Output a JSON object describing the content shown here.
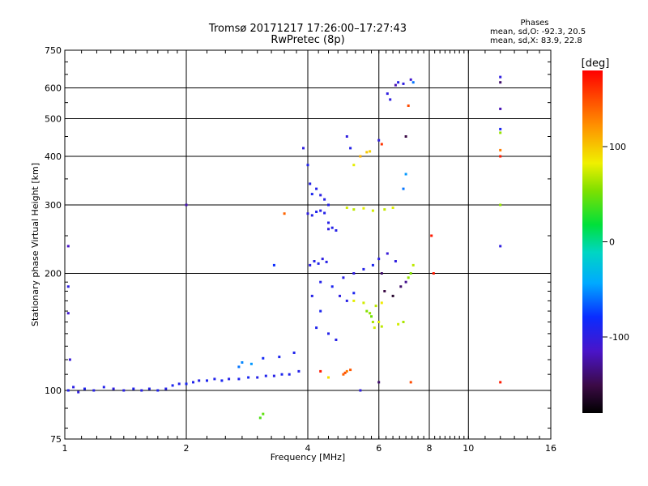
{
  "chart_data": {
    "type": "scatter",
    "title": "Tromsø 20171217 17:26:00–17:27:43",
    "subtitle": "RwPretec (8p)",
    "xlabel": "Frequency [MHz]",
    "ylabel": "Stationary phase Virtual Height [km]",
    "x_scale": "log",
    "y_scale": "log",
    "xlim": [
      1,
      16
    ],
    "ylim": [
      75,
      750
    ],
    "x_ticks": [
      1,
      2,
      4,
      6,
      8,
      10,
      16
    ],
    "y_ticks": [
      75,
      100,
      200,
      300,
      400,
      500,
      600,
      750
    ],
    "grid": true,
    "phases": {
      "title": "Phases",
      "o_line": "mean, sd,O: -92.3, 20.5",
      "x_line": "mean, sd,X: 83.9, 22.8"
    },
    "colorbar": {
      "label": "[deg]",
      "range": [
        -180,
        180
      ],
      "ticks": [
        100,
        0,
        -100
      ]
    },
    "series": [
      {
        "points": [
          [
            1.02,
            100,
            -95
          ],
          [
            1.05,
            102,
            -98
          ],
          [
            1.08,
            99,
            -100
          ],
          [
            1.12,
            101,
            -92
          ],
          [
            1.18,
            100,
            -96
          ],
          [
            1.25,
            102,
            -94
          ],
          [
            1.32,
            101,
            -100
          ],
          [
            1.4,
            100,
            -97
          ],
          [
            1.48,
            101,
            -93
          ],
          [
            1.55,
            100,
            -98
          ],
          [
            1.62,
            101,
            -95
          ],
          [
            1.7,
            100,
            -92
          ],
          [
            1.78,
            101,
            -96
          ],
          [
            1.85,
            103,
            -90
          ],
          [
            1.92,
            104,
            -94
          ],
          [
            2.0,
            104,
            -88
          ],
          [
            2.08,
            105,
            -92
          ],
          [
            2.15,
            106,
            -95
          ],
          [
            2.25,
            106,
            -90
          ],
          [
            2.35,
            107,
            -93
          ],
          [
            2.45,
            106,
            -89
          ],
          [
            2.55,
            107,
            -94
          ],
          [
            2.7,
            107,
            -91
          ],
          [
            2.85,
            108,
            -88
          ],
          [
            3.0,
            108,
            -95
          ],
          [
            3.15,
            109,
            -92
          ],
          [
            3.3,
            109,
            -96
          ],
          [
            3.45,
            110,
            -90
          ],
          [
            3.6,
            110,
            -93
          ],
          [
            3.8,
            112,
            -95
          ],
          [
            2.7,
            115,
            -60
          ],
          [
            2.75,
            118,
            -55
          ],
          [
            2.9,
            117,
            -50
          ],
          [
            3.1,
            121,
            -85
          ],
          [
            3.4,
            122,
            -90
          ],
          [
            3.7,
            125,
            -92
          ],
          [
            1.02,
            185,
            -100
          ],
          [
            1.02,
            158,
            -110
          ],
          [
            1.03,
            120,
            -105
          ],
          [
            1.02,
            235,
            -115
          ],
          [
            3.05,
            85,
            40
          ],
          [
            3.1,
            87,
            45
          ],
          [
            3.9,
            420,
            -100
          ],
          [
            4.0,
            380,
            -92
          ],
          [
            4.05,
            340,
            -95
          ],
          [
            4.1,
            320,
            -90
          ],
          [
            4.2,
            330,
            -94
          ],
          [
            4.3,
            318,
            -98
          ],
          [
            4.4,
            310,
            -96
          ],
          [
            4.5,
            300,
            -95
          ],
          [
            4.0,
            285,
            -100
          ],
          [
            4.1,
            282,
            -95
          ],
          [
            4.2,
            288,
            -92
          ],
          [
            4.3,
            290,
            -98
          ],
          [
            4.4,
            286,
            -94
          ],
          [
            4.5,
            270,
            -96
          ],
          [
            4.5,
            260,
            -100
          ],
          [
            4.6,
            262,
            -94
          ],
          [
            4.7,
            258,
            -96
          ],
          [
            4.05,
            210,
            -98
          ],
          [
            4.15,
            215,
            -95
          ],
          [
            4.25,
            212,
            -92
          ],
          [
            4.35,
            218,
            -99
          ],
          [
            4.45,
            214,
            -96
          ],
          [
            4.3,
            190,
            -94
          ],
          [
            4.6,
            185,
            -90
          ],
          [
            4.9,
            195,
            -97
          ],
          [
            5.2,
            200,
            -100
          ],
          [
            5.5,
            205,
            -95
          ],
          [
            5.8,
            210,
            -90
          ],
          [
            6.0,
            218,
            -98
          ],
          [
            6.3,
            225,
            -105
          ],
          [
            6.6,
            215,
            -100
          ],
          [
            4.1,
            175,
            -95
          ],
          [
            4.3,
            160,
            -90
          ],
          [
            4.2,
            145,
            -92
          ],
          [
            4.5,
            140,
            -94
          ],
          [
            4.7,
            135,
            -96
          ],
          [
            4.8,
            175,
            -100
          ],
          [
            5.0,
            170,
            -96
          ],
          [
            5.2,
            178,
            -90
          ],
          [
            6.2,
            180,
            -150
          ],
          [
            6.5,
            175,
            -160
          ],
          [
            6.8,
            185,
            -140
          ],
          [
            7.0,
            190,
            -130
          ],
          [
            6.1,
            200,
            -140
          ],
          [
            5.0,
            295,
            75
          ],
          [
            5.2,
            292,
            70
          ],
          [
            5.5,
            294,
            80
          ],
          [
            5.8,
            290,
            75
          ],
          [
            6.2,
            292,
            72
          ],
          [
            6.5,
            295,
            78
          ],
          [
            5.2,
            170,
            80
          ],
          [
            5.5,
            168,
            75
          ],
          [
            5.9,
            165,
            70
          ],
          [
            6.1,
            168,
            85
          ],
          [
            5.6,
            160,
            55
          ],
          [
            5.7,
            158,
            60
          ],
          [
            5.75,
            155,
            50
          ],
          [
            5.8,
            150,
            65
          ],
          [
            5.85,
            145,
            75
          ],
          [
            6.0,
            150,
            80
          ],
          [
            6.1,
            146,
            70
          ],
          [
            6.7,
            148,
            75
          ],
          [
            6.9,
            150,
            65
          ],
          [
            7.1,
            195,
            60
          ],
          [
            7.2,
            200,
            55
          ],
          [
            7.3,
            210,
            70
          ],
          [
            4.9,
            110,
            140
          ],
          [
            4.95,
            111,
            150
          ],
          [
            5.0,
            112,
            130
          ],
          [
            5.1,
            113,
            145
          ],
          [
            4.3,
            112,
            170
          ],
          [
            4.5,
            108,
            90
          ],
          [
            5.4,
            400,
            110
          ],
          [
            5.6,
            410,
            100
          ],
          [
            5.7,
            412,
            95
          ],
          [
            5.2,
            380,
            80
          ],
          [
            5.0,
            450,
            -100
          ],
          [
            5.1,
            420,
            -95
          ],
          [
            6.0,
            440,
            -100
          ],
          [
            6.1,
            430,
            160
          ],
          [
            6.6,
            610,
            -120
          ],
          [
            6.7,
            620,
            -95
          ],
          [
            6.9,
            615,
            -100
          ],
          [
            7.2,
            630,
            -110
          ],
          [
            7.3,
            620,
            -60
          ],
          [
            7.1,
            540,
            150
          ],
          [
            6.4,
            560,
            -100
          ],
          [
            6.3,
            580,
            -100
          ],
          [
            7.0,
            450,
            -150
          ],
          [
            7.0,
            360,
            -50
          ],
          [
            6.9,
            330,
            -60
          ],
          [
            7.2,
            105,
            150
          ],
          [
            8.1,
            250,
            170
          ],
          [
            8.2,
            200,
            170
          ],
          [
            6.0,
            105,
            -140
          ],
          [
            5.4,
            100,
            -100
          ],
          [
            12.0,
            640,
            -100
          ],
          [
            12.0,
            620,
            -140
          ],
          [
            12.0,
            530,
            -120
          ],
          [
            12.0,
            470,
            -90
          ],
          [
            12.0,
            460,
            60
          ],
          [
            12.0,
            415,
            130
          ],
          [
            12.0,
            400,
            170
          ],
          [
            12.0,
            300,
            60
          ],
          [
            12.0,
            235,
            -100
          ],
          [
            12.0,
            105,
            170
          ],
          [
            2.0,
            300,
            -120
          ],
          [
            3.5,
            285,
            140
          ],
          [
            3.3,
            210,
            -80
          ]
        ]
      }
    ]
  }
}
